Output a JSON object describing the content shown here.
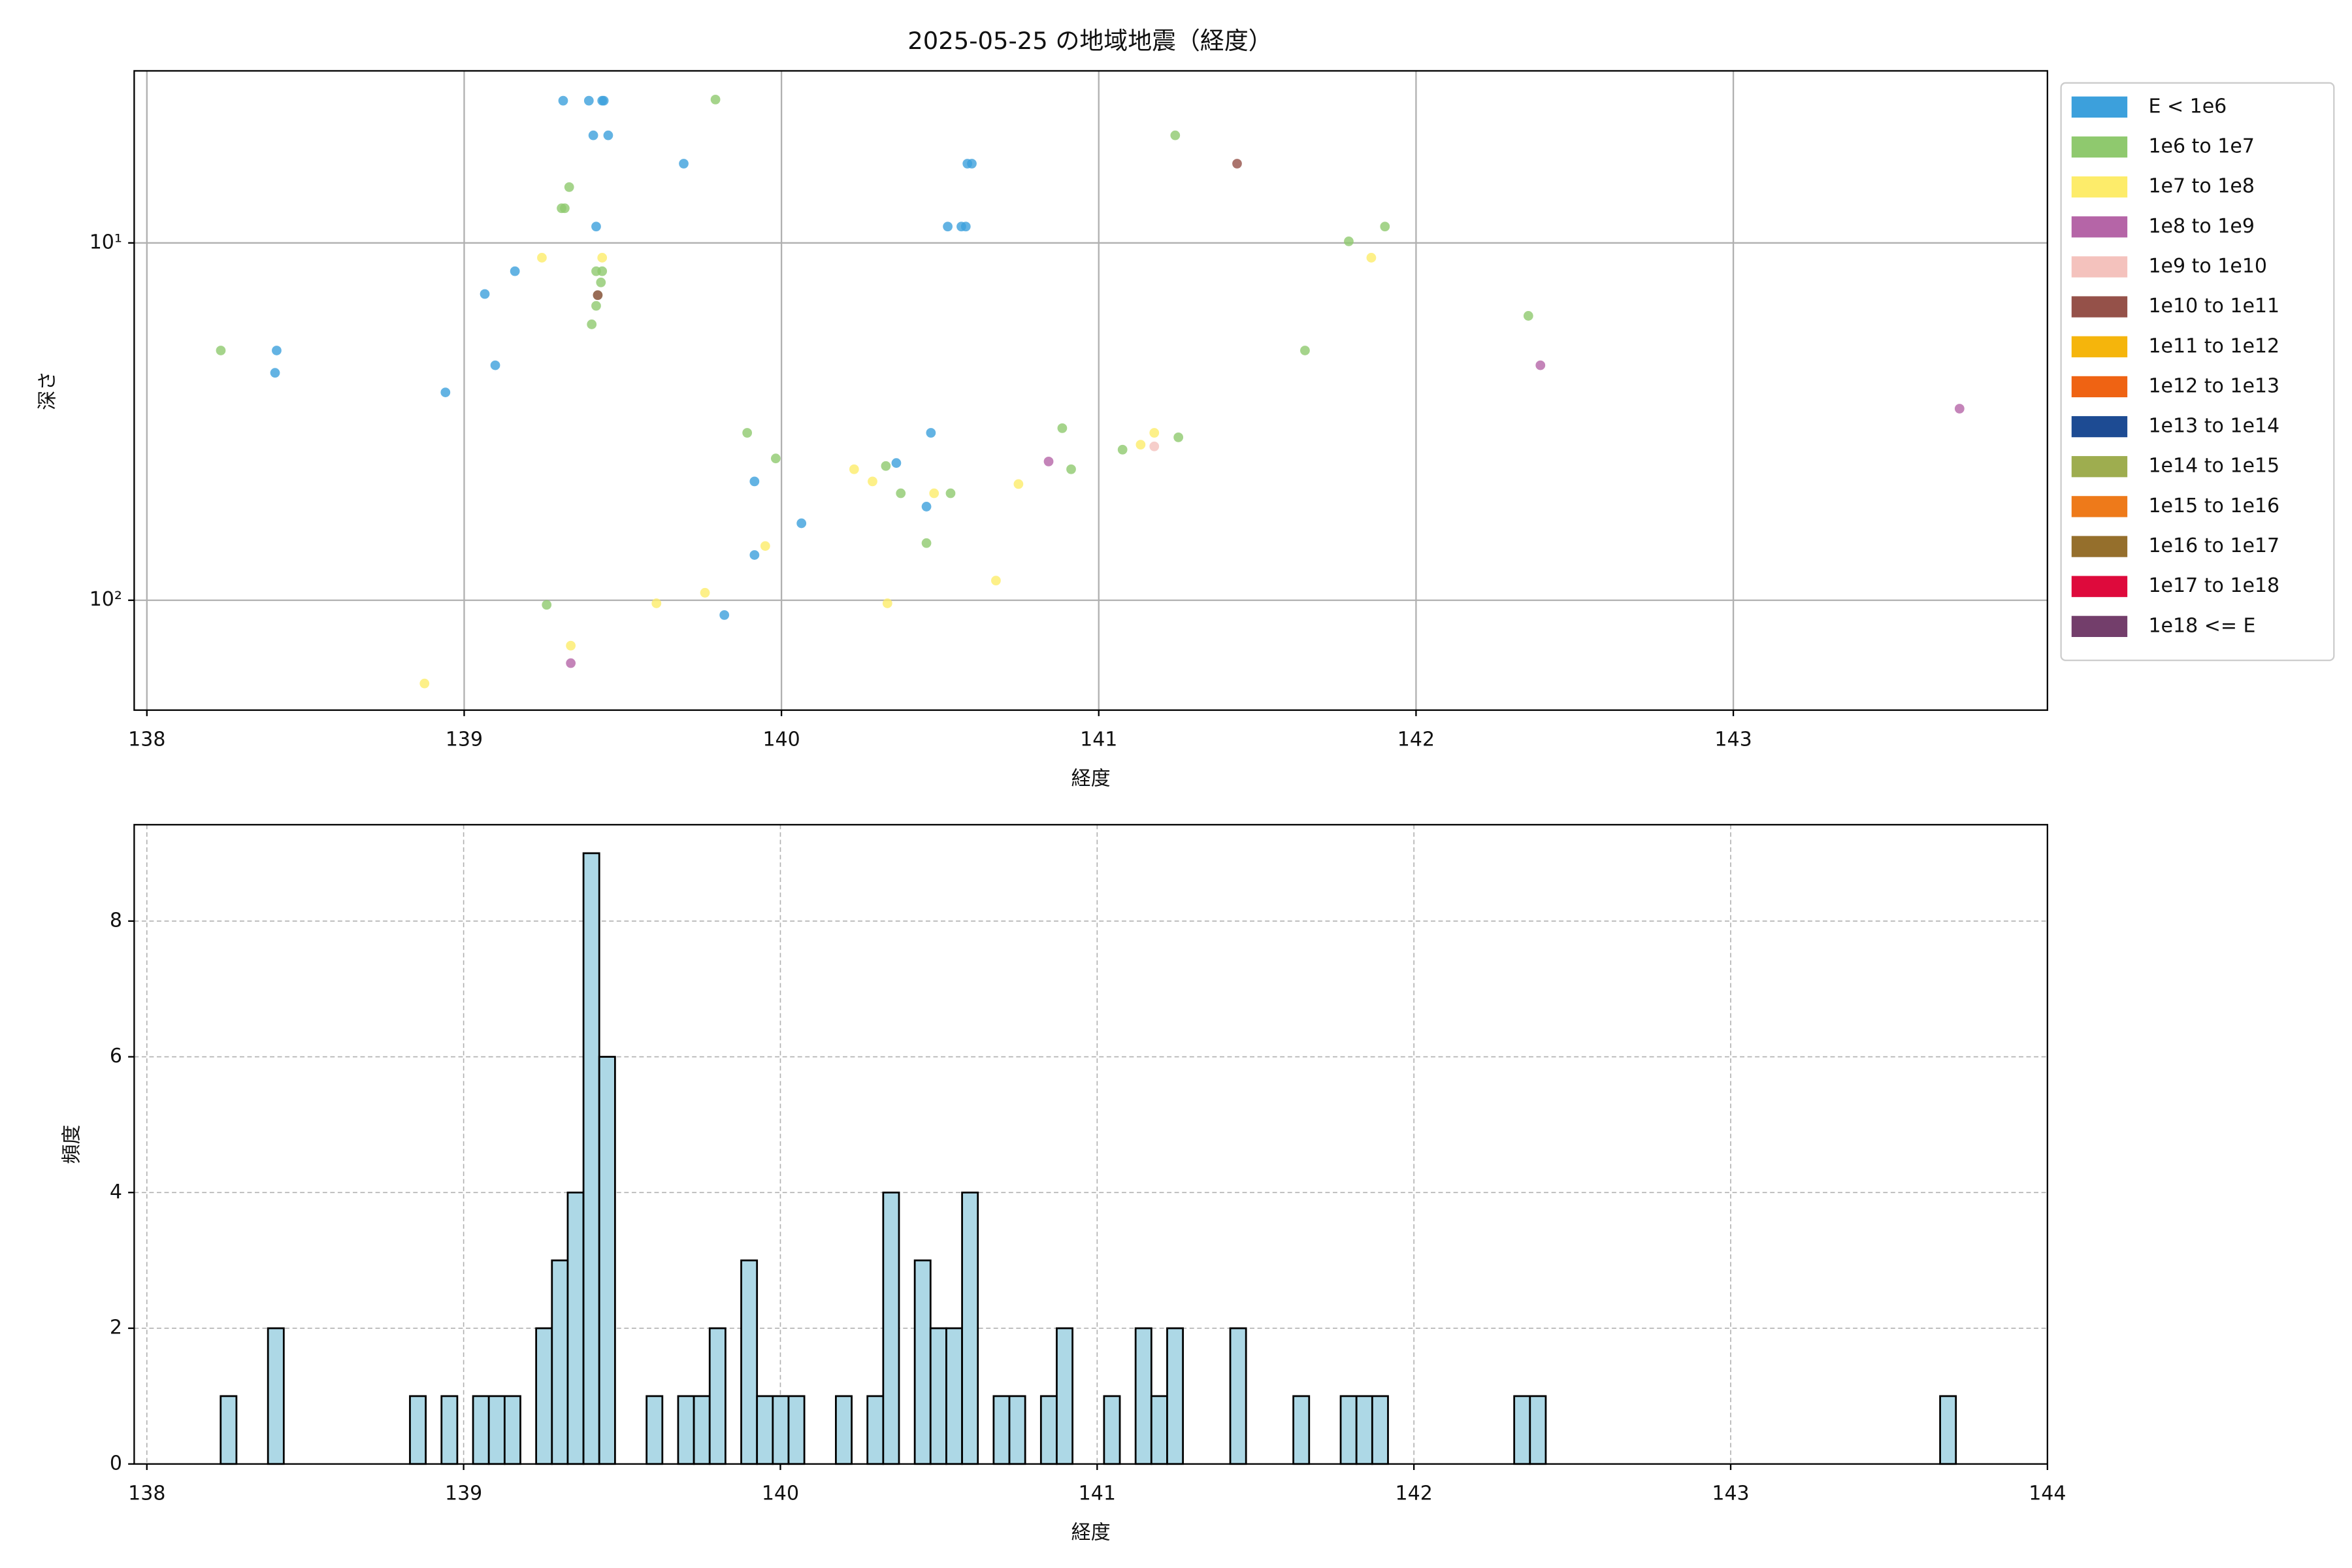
{
  "chart_data": [
    {
      "type": "scatter",
      "title": "2025-05-25 の地域地震（経度）",
      "xlabel": "経度",
      "ylabel": "深さ",
      "xlim": [
        137.96,
        143.99
      ],
      "xticks": [
        138,
        139,
        140,
        141,
        142,
        143
      ],
      "ylim": [
        3.3,
        203
      ],
      "log_y": true,
      "y_inverted": true,
      "yticks": [
        {
          "value": 10,
          "label": "10¹"
        },
        {
          "value": 100,
          "label": "10²"
        }
      ],
      "grid": true,
      "legend": "outside-right",
      "series": [
        {
          "name": "E < 1e6",
          "color": "#3ca0dc",
          "x": [
            139.312,
            139.393,
            139.435,
            139.44,
            139.407,
            139.454,
            139.692,
            139.416,
            139.16,
            139.065,
            139.098,
            138.409,
            138.404,
            138.941,
            140.524,
            140.567,
            140.581,
            140.586,
            140.6,
            140.471,
            140.362,
            139.915,
            140.457,
            140.063,
            139.915,
            139.82
          ],
          "values": [
            4.0,
            4.0,
            4.0,
            4.0,
            5.0,
            5.0,
            6.0,
            9.0,
            12.0,
            13.9,
            22.0,
            20.0,
            23.1,
            26.2,
            9.0,
            9.0,
            9.0,
            6.0,
            6.0,
            34.0,
            41.3,
            46.5,
            54.7,
            60.9,
            74.7,
            110
          ]
        },
        {
          "name": "1e6 to 1e7",
          "color": "#8fc96e",
          "x": [
            139.792,
            141.241,
            139.331,
            139.307,
            139.317,
            141.788,
            141.902,
            139.416,
            139.435,
            139.431,
            139.421,
            139.416,
            139.402,
            138.233,
            141.65,
            142.354,
            139.892,
            139.982,
            140.885,
            140.329,
            140.376,
            140.533,
            140.913,
            141.075,
            141.251,
            140.457,
            139.26
          ],
          "values": [
            3.97,
            5.0,
            6.98,
            8.0,
            8.0,
            9.9,
            9.0,
            12.0,
            12.0,
            12.9,
            14.0,
            15.0,
            16.9,
            20.0,
            20.0,
            16.0,
            34.0,
            40.1,
            33.0,
            42.1,
            50.2,
            50.2,
            43.0,
            37.9,
            35.0,
            69.2,
            103
          ]
        },
        {
          "name": "1e7 to 1e8",
          "color": "#fdec6a",
          "x": [
            139.245,
            139.435,
            141.859,
            140.229,
            140.287,
            140.481,
            140.747,
            141.132,
            141.175,
            139.949,
            140.676,
            139.759,
            139.606,
            140.334,
            139.336,
            138.875
          ],
          "values": [
            11.0,
            11.0,
            11.0,
            43.0,
            46.5,
            50.2,
            47.3,
            36.7,
            34.0,
            70.5,
            88.1,
            95.3,
            102,
            102,
            134,
            171
          ]
        },
        {
          "name": "1e8 to 1e9",
          "color": "#b565a7",
          "x": [
            142.392,
            143.713,
            140.842,
            139.336
          ],
          "values": [
            22.0,
            29.1,
            40.9,
            150
          ]
        },
        {
          "name": "1e9 to 1e10",
          "color": "#f4c2bd",
          "x": [
            141.175
          ],
          "values": [
            37.1
          ]
        },
        {
          "name": "1e10 to 1e11",
          "color": "#955149",
          "x": [
            139.421,
            141.436
          ],
          "values": [
            14.0,
            6.0
          ]
        },
        {
          "name": "1e11 to 1e12",
          "color": "#f5b50c",
          "x": [],
          "values": []
        },
        {
          "name": "1e12 to 1e13",
          "color": "#ef6313",
          "x": [],
          "values": []
        },
        {
          "name": "1e13 to 1e14",
          "color": "#1d4b93",
          "x": [],
          "values": []
        },
        {
          "name": "1e14 to 1e15",
          "color": "#9ead4f",
          "x": [],
          "values": []
        },
        {
          "name": "1e15 to 1e16",
          "color": "#ee7a1a",
          "x": [],
          "values": []
        },
        {
          "name": "1e16 to 1e17",
          "color": "#956f2c",
          "x": [],
          "values": []
        },
        {
          "name": "1e17 to 1e18",
          "color": "#de0a3c",
          "x": [],
          "values": []
        },
        {
          "name": "1e18 <= E",
          "color": "#733e6b",
          "x": [],
          "values": []
        }
      ]
    },
    {
      "type": "histogram",
      "xlabel": "経度",
      "ylabel": "頻度",
      "color": "#add8e6",
      "edgecolor": "#000000",
      "xlim": [
        137.96,
        144.0
      ],
      "xticks": [
        138,
        139,
        140,
        141,
        142,
        143,
        144
      ],
      "ylim": [
        0,
        9.42
      ],
      "yticks": [
        0,
        2,
        4,
        6,
        8
      ],
      "grid": true,
      "grid_style": "dashed",
      "bins": [
        138.233,
        138.2828,
        138.3326,
        138.3824,
        138.4322,
        138.482,
        138.5318,
        138.5816,
        138.6314,
        138.6812,
        138.731,
        138.7808,
        138.8306,
        138.8804,
        138.9302,
        138.98,
        139.0298,
        139.0796,
        139.1294,
        139.1792,
        139.229,
        139.2788,
        139.3286,
        139.3784,
        139.4282,
        139.478,
        139.5278,
        139.5776,
        139.6274,
        139.6772,
        139.727,
        139.7768,
        139.8266,
        139.8764,
        139.9262,
        139.976,
        140.0258,
        140.0756,
        140.1254,
        140.1752,
        140.225,
        140.2748,
        140.3246,
        140.3744,
        140.4242,
        140.474,
        140.5238,
        140.5736,
        140.6234,
        140.6732,
        140.723,
        140.7728,
        140.8226,
        140.8724,
        140.9222,
        140.972,
        141.0218,
        141.0716,
        141.1214,
        141.1712,
        141.221,
        141.2708,
        141.3206,
        141.3704,
        141.4202,
        141.47,
        141.5198,
        141.5696,
        141.6194,
        141.6692,
        141.719,
        141.7688,
        141.8186,
        141.8684,
        141.9182,
        141.968,
        142.0178,
        142.0676,
        142.1174,
        142.1672,
        142.217,
        142.2668,
        142.3166,
        142.3664,
        142.4162,
        142.466,
        142.5158,
        142.5656,
        142.6154,
        142.6652,
        142.715,
        142.7648,
        142.8146,
        142.8644,
        142.9142,
        142.964,
        143.0138,
        143.0636,
        143.1134,
        143.1632,
        143.213,
        143.2628,
        143.3126,
        143.3624,
        143.4122,
        143.462,
        143.5118,
        143.5616,
        143.6114,
        143.6612,
        143.711
      ],
      "values": [
        1,
        0,
        0,
        2,
        0,
        0,
        0,
        0,
        0,
        0,
        0,
        0,
        1,
        0,
        1,
        0,
        1,
        1,
        1,
        0,
        2,
        3,
        4,
        9,
        6,
        0,
        0,
        1,
        0,
        1,
        1,
        2,
        0,
        3,
        1,
        1,
        1,
        0,
        0,
        1,
        0,
        1,
        4,
        0,
        3,
        2,
        2,
        4,
        0,
        1,
        1,
        0,
        1,
        2,
        0,
        0,
        1,
        0,
        2,
        1,
        2,
        0,
        0,
        0,
        2,
        0,
        0,
        0,
        1,
        0,
        0,
        1,
        1,
        1,
        0,
        0,
        0,
        0,
        0,
        0,
        0,
        0,
        1,
        1,
        0,
        0,
        0,
        0,
        0,
        0,
        0,
        0,
        0,
        0,
        0,
        0,
        0,
        0,
        0,
        0,
        0,
        0,
        0,
        0,
        0,
        0,
        0,
        0,
        0,
        1
      ]
    }
  ]
}
